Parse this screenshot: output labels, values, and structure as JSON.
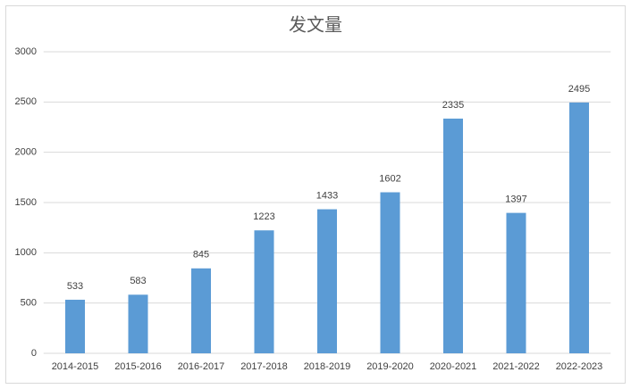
{
  "chart_data": {
    "type": "bar",
    "title": "发文量",
    "categories": [
      "2014-2015",
      "2015-2016",
      "2016-2017",
      "2017-2018",
      "2018-2019",
      "2019-2020",
      "2020-2021",
      "2021-2022",
      "2022-2023"
    ],
    "values": [
      533,
      583,
      845,
      1223,
      1433,
      1602,
      2335,
      1397,
      2495
    ],
    "color": "#5b9bd5",
    "ylim": [
      0,
      3000
    ],
    "yticks": [
      0,
      500,
      1000,
      1500,
      2000,
      2500,
      3000
    ],
    "grid": true
  }
}
